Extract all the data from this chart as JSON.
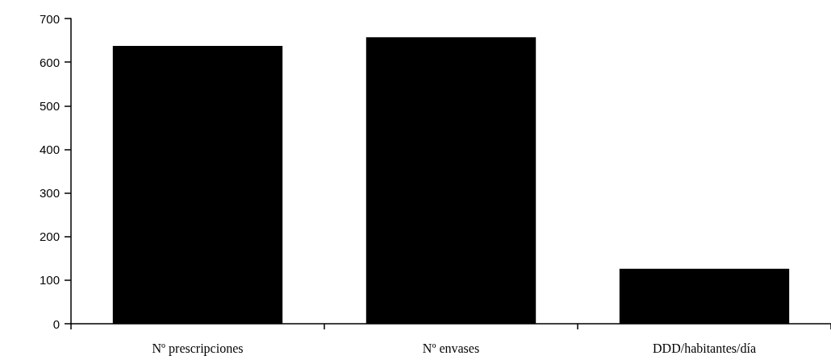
{
  "chart_data": {
    "type": "bar",
    "categories": [
      "Nº prescripciones",
      "Nº envases",
      "DDD/habitantes/día"
    ],
    "values": [
      637,
      657,
      126
    ],
    "color": "#000000",
    "ylim": [
      0,
      700
    ],
    "yticks": [
      0,
      100,
      200,
      300,
      400,
      500,
      600,
      700
    ],
    "grid": false
  }
}
